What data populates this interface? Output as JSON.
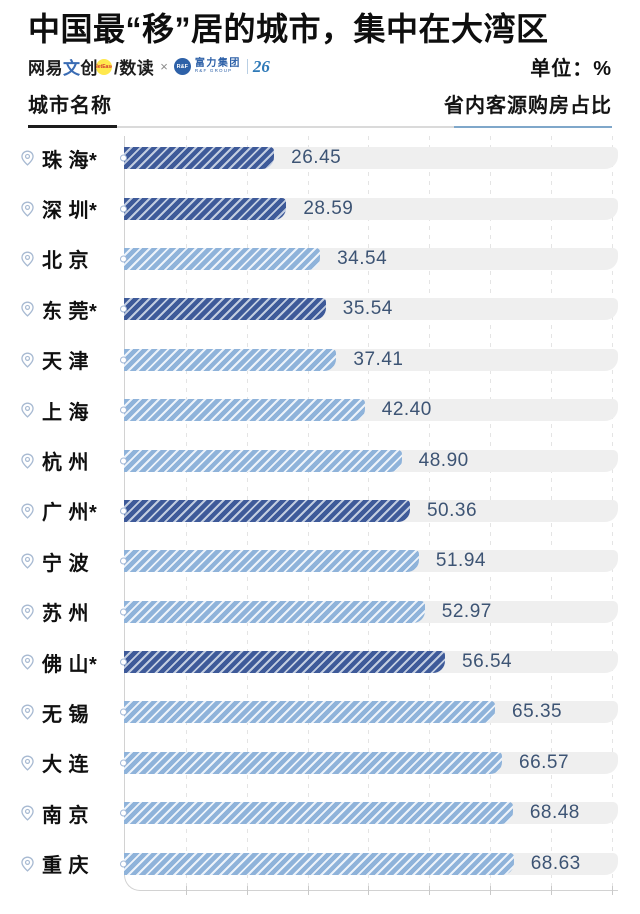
{
  "title": "中国最“移”居的城市，集中在大湾区",
  "brand": {
    "netease_parts": {
      "prefix": "网易",
      "blue": "文",
      "suffix": "创"
    },
    "netease_badge": "NetEase",
    "shudu": "/数读",
    "cross": "×",
    "rf_abbr": "R&F",
    "rf_name": "富力集团",
    "rf_sub": "R&F GROUP",
    "anniversary": "26",
    "unit_label": "单位：%"
  },
  "table_header": {
    "left": "城市名称",
    "right": "省内客源购房占比"
  },
  "chart_data": {
    "type": "bar",
    "orientation": "horizontal",
    "title": "中国最“移”居的城市，集中在大湾区",
    "unit": "%",
    "xlabel": "省内客源购房占比",
    "xlim": [
      0,
      87
    ],
    "grid": true,
    "categories": [
      "珠海*",
      "深圳*",
      "北京",
      "东莞*",
      "天津",
      "上海",
      "杭州",
      "广州*",
      "宁波",
      "苏州",
      "佛山*",
      "无锡",
      "大连",
      "南京",
      "重庆"
    ],
    "display_labels": [
      "珠 海*",
      "深 圳*",
      "北 京",
      "东 莞*",
      "天 津",
      "上 海",
      "杭 州",
      "广 州*",
      "宁 波",
      "苏 州",
      "佛 山*",
      "无 锡",
      "大 连",
      "南 京",
      "重 庆"
    ],
    "values": [
      26.45,
      28.59,
      34.54,
      35.54,
      37.41,
      42.4,
      48.9,
      50.36,
      51.94,
      52.97,
      56.54,
      65.35,
      66.57,
      68.48,
      68.63
    ],
    "value_labels": [
      "26.45",
      "28.59",
      "34.54",
      "35.54",
      "37.41",
      "42.40",
      "48.90",
      "50.36",
      "51.94",
      "52.97",
      "56.54",
      "65.35",
      "66.57",
      "68.48",
      "68.63"
    ],
    "highlighted": [
      true,
      true,
      false,
      true,
      false,
      false,
      false,
      true,
      false,
      false,
      true,
      false,
      false,
      false,
      false
    ],
    "colors": {
      "highlight_bar": "#3e5a99",
      "normal_bar": "#8fb3da",
      "track": "#efefef",
      "value_text": "#3d5474",
      "axis": "#d2d2d2"
    },
    "gridline_count": 8
  }
}
